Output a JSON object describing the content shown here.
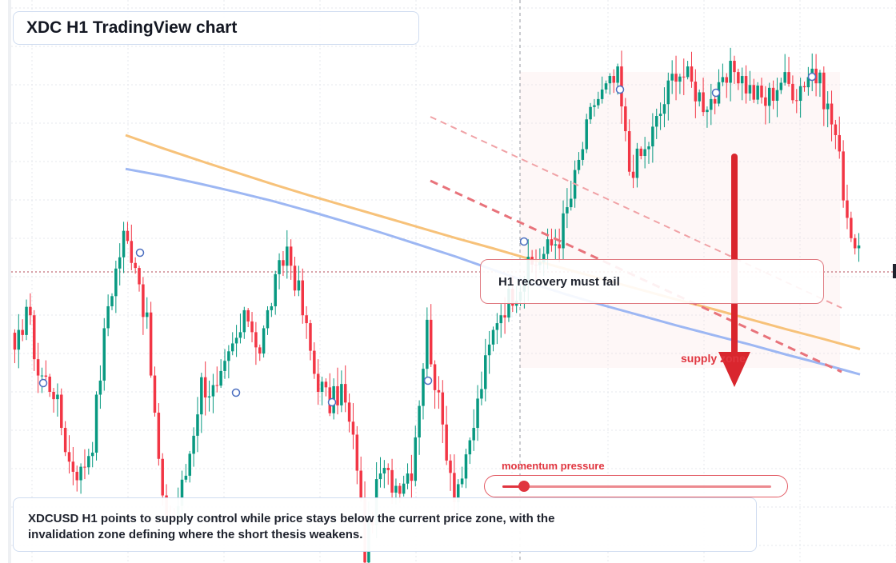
{
  "title": "XDC H1 TradingView chart",
  "callout": {
    "text": "H1 recovery must fail"
  },
  "zone_label": "supply zone",
  "momentum": {
    "label": "momentum pressure",
    "level": 0.08
  },
  "summary": {
    "line1": "XDCUSD H1 points to supply control while price stays below the current price zone, with the",
    "line2": "invalidation zone defining where the short thesis weakens."
  },
  "colors": {
    "bull": "#089981",
    "bear": "#f23645",
    "ma_slow": "#f7c27a",
    "ma_fast": "#9db7f3",
    "accent": "#e0353f"
  },
  "chart_data": {
    "type": "candlestick",
    "symbol": "XDCUSD",
    "timeframe": "H1",
    "price_range": [
      0,
      100
    ],
    "current_price": 52.0,
    "grid": true,
    "legend": "none",
    "candles": [],
    "series": [
      {
        "values": [
          76,
          73.7,
          71.5,
          69.4,
          67.3,
          65.3,
          63.4,
          61.5,
          59.6,
          57.7,
          55.9,
          54.0,
          52.2,
          50.4,
          48.6,
          46.8,
          45.1,
          43.3,
          41.5,
          39.8,
          38.0
        ]
      },
      {
        "values": [
          70,
          68.8,
          67.4,
          65.9,
          64.3,
          62.5,
          60.6,
          58.6,
          56.5,
          54.4,
          52.1,
          49.8,
          47.7,
          45.8,
          44.0,
          42.2,
          40.5,
          38.8,
          37.0,
          35.3,
          33.5
        ]
      }
    ]
  }
}
